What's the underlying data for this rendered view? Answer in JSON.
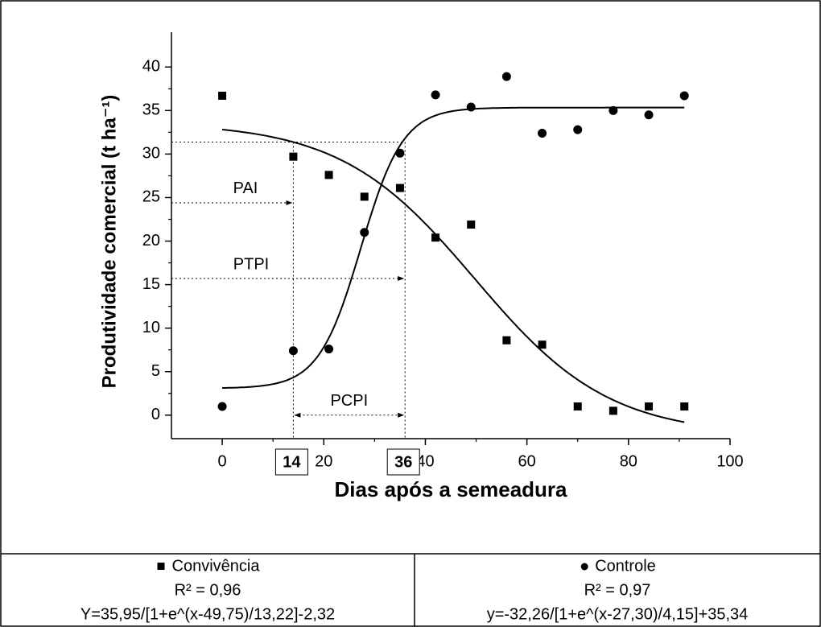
{
  "chart_data": {
    "type": "scatter",
    "xlabel": "Dias após a semeadura",
    "ylabel": "Produtividade comercial (t ha⁻¹)",
    "x": [
      0,
      14,
      21,
      28,
      35,
      42,
      49,
      56,
      63,
      70,
      77,
      84,
      91
    ],
    "series": [
      {
        "name": "Convivência",
        "marker": "square",
        "color": "#000000",
        "values": [
          36.7,
          29.7,
          27.6,
          25.1,
          26.1,
          20.4,
          21.9,
          8.6,
          8.1,
          1.0,
          0.5,
          1.0,
          1.0
        ],
        "r2": "R² = 0,96",
        "equation": "Y=35,95/[1+e^(x-49,75)/13,22]-2,32",
        "fit": {
          "a": 35.95,
          "x0": 49.75,
          "b": 13.22,
          "c": -2.32
        }
      },
      {
        "name": "Controle",
        "marker": "circle",
        "color": "#000000",
        "values": [
          1.0,
          7.4,
          7.6,
          21.0,
          30.1,
          36.8,
          35.4,
          38.9,
          32.4,
          32.8,
          35.0,
          34.5,
          36.7
        ],
        "r2": "R² = 0,97",
        "equation": "y=-32,26/[1+e^(x-27,30)/4,15]+35,34",
        "fit": {
          "a": -32.26,
          "x0": 27.3,
          "b": 4.15,
          "c": 35.34
        }
      }
    ],
    "xlim": [
      -10,
      100
    ],
    "xticks": [
      0,
      20,
      40,
      60,
      80,
      100
    ],
    "ylim": [
      -2.7,
      44
    ],
    "yticks": [
      0,
      5,
      10,
      15,
      20,
      25,
      30,
      35,
      40
    ],
    "critical_days": [
      14,
      36
    ],
    "annotations": [
      "PAI",
      "PTPI",
      "PCPI"
    ]
  }
}
